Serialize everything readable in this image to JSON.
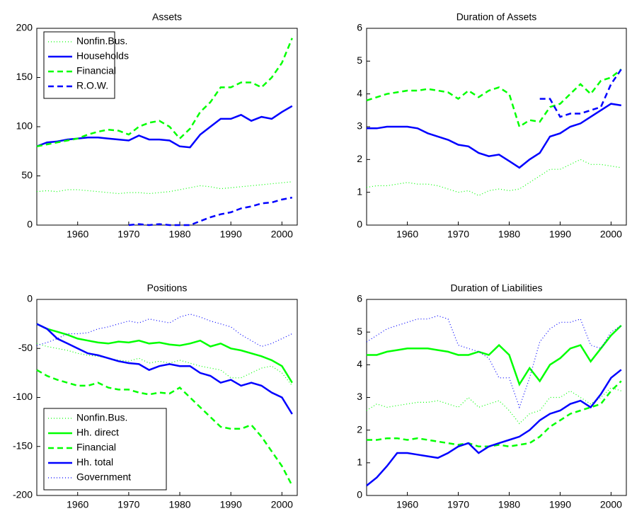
{
  "chart_data": [
    {
      "type": "line",
      "title": "Assets",
      "legend": "upper left",
      "x": [
        1952,
        1954,
        1956,
        1958,
        1960,
        1962,
        1964,
        1966,
        1968,
        1970,
        1972,
        1974,
        1976,
        1978,
        1980,
        1982,
        1984,
        1986,
        1988,
        1990,
        1992,
        1994,
        1996,
        1998,
        2000,
        2002
      ],
      "xlim": [
        1952,
        2003
      ],
      "xticks": [
        1960,
        1970,
        1980,
        1990,
        2000
      ],
      "ylim": [
        0,
        200
      ],
      "yticks": [
        0,
        50,
        100,
        150,
        200
      ],
      "series": [
        {
          "name": "Nonfin.Bus.",
          "color": "#00ff00",
          "style": "dotted",
          "values": [
            34,
            35,
            34,
            36,
            36,
            35,
            34,
            33,
            32,
            33,
            33,
            32,
            33,
            34,
            36,
            38,
            40,
            39,
            37,
            38,
            39,
            40,
            41,
            42,
            43,
            44
          ]
        },
        {
          "name": "Households",
          "color": "#0000ff",
          "style": "solid",
          "values": [
            80,
            84,
            85,
            87,
            88,
            89,
            89,
            88,
            87,
            86,
            91,
            87,
            87,
            86,
            80,
            79,
            92,
            100,
            108,
            108,
            112,
            106,
            110,
            108,
            115,
            121
          ]
        },
        {
          "name": "Financial",
          "color": "#00ff00",
          "style": "dashed",
          "values": [
            80,
            82,
            84,
            86,
            88,
            92,
            95,
            97,
            96,
            92,
            100,
            104,
            106,
            100,
            88,
            98,
            115,
            125,
            140,
            140,
            145,
            145,
            140,
            150,
            165,
            190
          ]
        },
        {
          "name": "R.O.W.",
          "color": "#0000ff",
          "style": "dashed",
          "values": [
            null,
            null,
            null,
            null,
            null,
            null,
            null,
            null,
            null,
            0,
            1,
            0,
            1,
            0,
            0,
            0,
            4,
            8,
            11,
            13,
            17,
            19,
            22,
            23,
            26,
            28
          ]
        }
      ]
    },
    {
      "type": "line",
      "title": "Duration of Assets",
      "x": [
        1952,
        1954,
        1956,
        1958,
        1960,
        1962,
        1964,
        1966,
        1968,
        1970,
        1972,
        1974,
        1976,
        1978,
        1980,
        1982,
        1984,
        1986,
        1988,
        1990,
        1992,
        1994,
        1996,
        1998,
        2000,
        2002
      ],
      "xlim": [
        1952,
        2003
      ],
      "xticks": [
        1960,
        1970,
        1980,
        1990,
        2000
      ],
      "ylim": [
        0,
        6
      ],
      "yticks": [
        0,
        1,
        2,
        3,
        4,
        5,
        6
      ],
      "series": [
        {
          "color": "#00ff00",
          "style": "dotted",
          "values": [
            1.15,
            1.2,
            1.2,
            1.25,
            1.3,
            1.25,
            1.25,
            1.2,
            1.1,
            1.0,
            1.05,
            0.9,
            1.05,
            1.1,
            1.05,
            1.1,
            1.3,
            1.5,
            1.7,
            1.7,
            1.85,
            2.0,
            1.85,
            1.85,
            1.8,
            1.75
          ]
        },
        {
          "color": "#0000ff",
          "style": "solid",
          "values": [
            2.95,
            2.95,
            3.0,
            3.0,
            3.0,
            2.95,
            2.8,
            2.7,
            2.6,
            2.45,
            2.4,
            2.2,
            2.1,
            2.15,
            1.95,
            1.75,
            2.0,
            2.2,
            2.7,
            2.8,
            3.0,
            3.1,
            3.3,
            3.5,
            3.7,
            3.65
          ]
        },
        {
          "color": "#00ff00",
          "style": "dashed",
          "values": [
            3.8,
            3.9,
            4.0,
            4.05,
            4.1,
            4.1,
            4.15,
            4.1,
            4.05,
            3.85,
            4.1,
            3.9,
            4.1,
            4.2,
            4.0,
            3.0,
            3.2,
            3.15,
            3.6,
            3.7,
            4.0,
            4.3,
            4.0,
            4.4,
            4.5,
            4.75
          ]
        },
        {
          "color": "#0000ff",
          "style": "dashed",
          "values": [
            null,
            null,
            null,
            null,
            null,
            null,
            null,
            null,
            null,
            null,
            null,
            null,
            null,
            null,
            null,
            null,
            null,
            3.85,
            3.85,
            3.3,
            3.4,
            3.4,
            3.5,
            3.6,
            4.3,
            4.75
          ]
        }
      ]
    },
    {
      "type": "line",
      "title": "Positions",
      "legend": "lower left",
      "x": [
        1952,
        1954,
        1956,
        1958,
        1960,
        1962,
        1964,
        1966,
        1968,
        1970,
        1972,
        1974,
        1976,
        1978,
        1980,
        1982,
        1984,
        1986,
        1988,
        1990,
        1992,
        1994,
        1996,
        1998,
        2000,
        2002
      ],
      "xlim": [
        1952,
        2003
      ],
      "xticks": [
        1960,
        1970,
        1980,
        1990,
        2000
      ],
      "ylim": [
        -200,
        0
      ],
      "yticks": [
        -200,
        -150,
        -100,
        -50,
        0
      ],
      "series": [
        {
          "name": "Nonfin.Bus.",
          "color": "#00ff00",
          "style": "dotted",
          "values": [
            -45,
            -48,
            -50,
            -52,
            -55,
            -57,
            -58,
            -60,
            -62,
            -63,
            -60,
            -65,
            -63,
            -65,
            -62,
            -65,
            -68,
            -70,
            -72,
            -80,
            -80,
            -75,
            -70,
            -68,
            -75,
            -88
          ]
        },
        {
          "name": "Hh. direct",
          "color": "#00ff00",
          "style": "solid",
          "values": [
            -25,
            -30,
            -33,
            -36,
            -40,
            -42,
            -44,
            -45,
            -43,
            -44,
            -42,
            -45,
            -44,
            -46,
            -47,
            -45,
            -42,
            -48,
            -45,
            -50,
            -52,
            -55,
            -58,
            -62,
            -68,
            -85
          ]
        },
        {
          "name": "Financial",
          "color": "#00ff00",
          "style": "dashed",
          "values": [
            -72,
            -78,
            -82,
            -85,
            -88,
            -88,
            -85,
            -90,
            -92,
            -92,
            -95,
            -97,
            -95,
            -96,
            -90,
            -100,
            -110,
            -120,
            -130,
            -132,
            -132,
            -128,
            -140,
            -155,
            -170,
            -190
          ]
        },
        {
          "name": "Hh. total",
          "color": "#0000ff",
          "style": "solid",
          "values": [
            -25,
            -30,
            -40,
            -45,
            -50,
            -55,
            -57,
            -60,
            -63,
            -65,
            -66,
            -72,
            -68,
            -66,
            -68,
            -68,
            -75,
            -78,
            -85,
            -82,
            -88,
            -85,
            -88,
            -95,
            -100,
            -117
          ]
        },
        {
          "name": "Government",
          "color": "#0000ff",
          "style": "dotted",
          "values": [
            -47,
            -44,
            -40,
            -35,
            -35,
            -34,
            -30,
            -28,
            -25,
            -22,
            -24,
            -20,
            -22,
            -24,
            -18,
            -15,
            -18,
            -22,
            -25,
            -28,
            -36,
            -42,
            -48,
            -45,
            -40,
            -35
          ]
        }
      ]
    },
    {
      "type": "line",
      "title": "Duration of Liabilities",
      "x": [
        1952,
        1954,
        1956,
        1958,
        1960,
        1962,
        1964,
        1966,
        1968,
        1970,
        1972,
        1974,
        1976,
        1978,
        1980,
        1982,
        1984,
        1986,
        1988,
        1990,
        1992,
        1994,
        1996,
        1998,
        2000,
        2002
      ],
      "xlim": [
        1952,
        2003
      ],
      "xticks": [
        1960,
        1970,
        1980,
        1990,
        2000
      ],
      "ylim": [
        0,
        6
      ],
      "yticks": [
        0,
        1,
        2,
        3,
        4,
        5,
        6
      ],
      "series": [
        {
          "color": "#00ff00",
          "style": "dotted",
          "values": [
            2.6,
            2.8,
            2.7,
            2.75,
            2.8,
            2.85,
            2.85,
            2.9,
            2.8,
            2.7,
            3.0,
            2.7,
            2.8,
            2.9,
            2.6,
            2.2,
            2.5,
            2.6,
            3.0,
            3.0,
            3.2,
            3.0,
            2.8,
            3.0,
            3.3,
            3.2
          ]
        },
        {
          "color": "#00ff00",
          "style": "solid",
          "values": [
            4.3,
            4.3,
            4.4,
            4.45,
            4.5,
            4.5,
            4.5,
            4.45,
            4.4,
            4.3,
            4.3,
            4.4,
            4.3,
            4.6,
            4.3,
            3.4,
            3.9,
            3.5,
            4.0,
            4.2,
            4.5,
            4.6,
            4.1,
            4.5,
            4.9,
            5.2
          ]
        },
        {
          "color": "#00ff00",
          "style": "dashed",
          "values": [
            1.7,
            1.7,
            1.75,
            1.75,
            1.7,
            1.75,
            1.7,
            1.65,
            1.6,
            1.55,
            1.6,
            1.5,
            1.5,
            1.55,
            1.5,
            1.55,
            1.6,
            1.8,
            2.1,
            2.3,
            2.5,
            2.6,
            2.7,
            2.8,
            3.2,
            3.5
          ]
        },
        {
          "color": "#0000ff",
          "style": "solid",
          "values": [
            0.3,
            0.55,
            0.9,
            1.3,
            1.3,
            1.25,
            1.2,
            1.15,
            1.3,
            1.5,
            1.6,
            1.3,
            1.5,
            1.6,
            1.7,
            1.8,
            2.0,
            2.3,
            2.5,
            2.6,
            2.8,
            2.9,
            2.7,
            3.1,
            3.6,
            3.85
          ]
        },
        {
          "color": "#0000ff",
          "style": "dotted",
          "values": [
            4.7,
            4.9,
            5.1,
            5.2,
            5.3,
            5.4,
            5.4,
            5.5,
            5.4,
            4.6,
            4.5,
            4.4,
            4.2,
            3.6,
            3.6,
            2.7,
            3.6,
            4.7,
            5.1,
            5.3,
            5.3,
            5.4,
            4.6,
            4.5,
            5.0,
            5.2
          ]
        }
      ]
    }
  ]
}
